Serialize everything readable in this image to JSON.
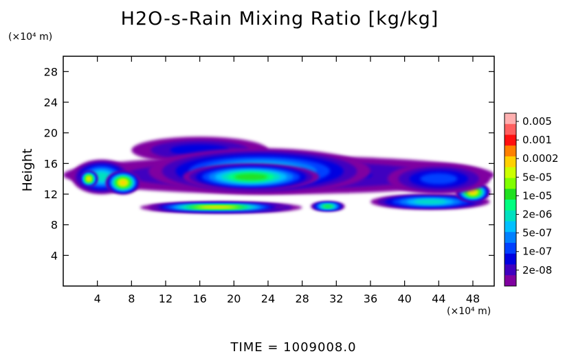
{
  "chart_data": {
    "type": "contour",
    "title": "H2O-s-Rain Mixing Ratio [kg/kg]",
    "ylabel": "Height",
    "y_unit": "(×10⁴ m)",
    "x_unit": "(×10⁴ m)",
    "x_ticks": [
      4,
      8,
      12,
      16,
      20,
      24,
      28,
      32,
      36,
      40,
      44,
      48
    ],
    "y_ticks": [
      4,
      8,
      12,
      16,
      20,
      24,
      28
    ],
    "xlim": [
      0,
      50.5
    ],
    "ylim": [
      0,
      30
    ],
    "colorbar": {
      "labels": [
        "0.005",
        "0.001",
        "0.0002",
        "5e-05",
        "1e-05",
        "2e-06",
        "5e-07",
        "1e-07",
        "2e-08"
      ],
      "colors": [
        "#ffb0b0",
        "#ff6060",
        "#ff1010",
        "#ff8000",
        "#ffd000",
        "#ccff00",
        "#80ff00",
        "#20e020",
        "#00ff80",
        "#00e0c0",
        "#00c0ff",
        "#0080ff",
        "#0040ff",
        "#0000e0",
        "#4000c0",
        "#8000a0"
      ]
    },
    "blobs": [
      {
        "x": [
          0,
          50.5
        ],
        "y": [
          12,
          17
        ],
        "level": 2
      },
      {
        "x": [
          8,
          24
        ],
        "y": [
          16,
          19.5
        ],
        "level": 2
      },
      {
        "x": [
          10,
          36
        ],
        "y": [
          12,
          18
        ],
        "level": 6
      },
      {
        "x": [
          14,
          30
        ],
        "y": [
          12.5,
          16
        ],
        "level": 8
      },
      {
        "x": [
          1,
          8
        ],
        "y": [
          12,
          16.5
        ],
        "level": 6
      },
      {
        "x": [
          2,
          4
        ],
        "y": [
          13,
          15
        ],
        "level": 11
      },
      {
        "x": [
          5,
          9
        ],
        "y": [
          12,
          15
        ],
        "level": 11
      },
      {
        "x": [
          9,
          28
        ],
        "y": [
          9.5,
          11
        ],
        "level": 6
      },
      {
        "x": [
          10,
          26
        ],
        "y": [
          9.8,
          10.8
        ],
        "level": 11
      },
      {
        "x": [
          29,
          33
        ],
        "y": [
          9.8,
          11
        ],
        "level": 8
      },
      {
        "x": [
          36,
          50
        ],
        "y": [
          10,
          12
        ],
        "level": 6
      },
      {
        "x": [
          46,
          50
        ],
        "y": [
          11,
          13.5
        ],
        "level": 11
      },
      {
        "x": [
          38,
          50
        ],
        "y": [
          12,
          16
        ],
        "level": 3
      }
    ]
  },
  "time_label": "TIME = 1009008.0"
}
